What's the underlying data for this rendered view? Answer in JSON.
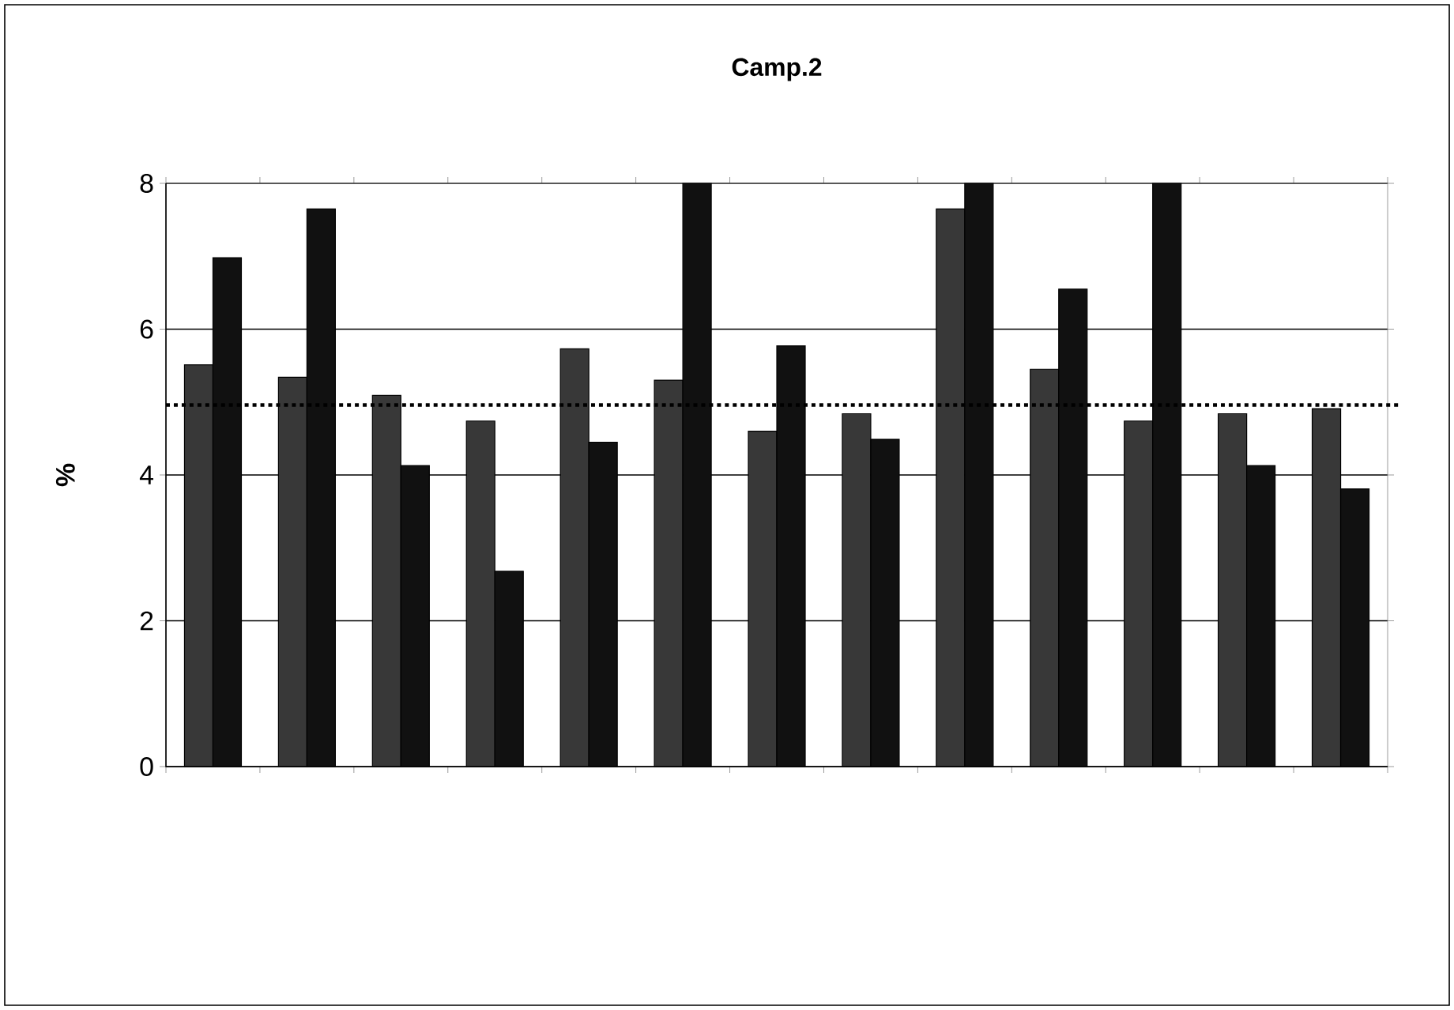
{
  "chart_data": {
    "type": "bar",
    "title": "Camp.2",
    "ylabel": "%",
    "categories": [
      null,
      null,
      null,
      null,
      null,
      null,
      null,
      null,
      null,
      null,
      null,
      null,
      null
    ],
    "series": [
      {
        "color": "#383838",
        "values": [
          5.51,
          5.34,
          5.09,
          4.74,
          5.73,
          5.3,
          4.6,
          4.84,
          7.65,
          5.45,
          4.74,
          4.84,
          4.91
        ]
      },
      {
        "color": "#111111",
        "values": [
          6.98,
          7.65,
          4.13,
          2.68,
          4.45,
          8,
          5.77,
          4.49,
          8,
          6.55,
          8,
          4.13,
          3.81
        ]
      }
    ],
    "ylim": [
      0,
      8
    ],
    "yticks": [
      0,
      2,
      4,
      6,
      8
    ],
    "grid": "y",
    "ref_lines": [
      {
        "axis": "y",
        "value": 4.96,
        "color": "#000000",
        "line_style": "dotted"
      }
    ]
  }
}
